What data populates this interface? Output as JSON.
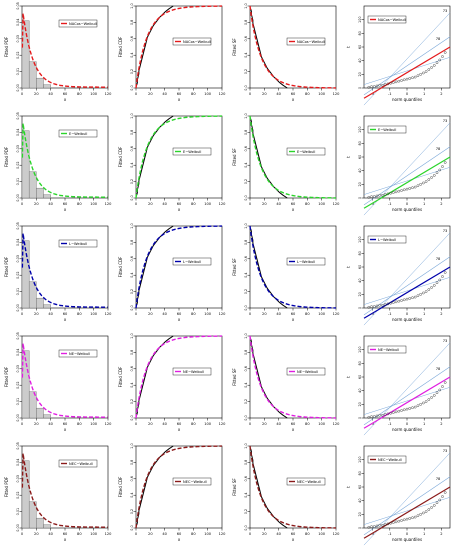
{
  "chart_data": [
    {
      "row": 0,
      "panel": "pdf",
      "type": "bar",
      "ylabel": "Fitted PDF",
      "xlabel": "x",
      "legend": "NACos−Weibull",
      "color": "#e41a1c",
      "xlim": [
        0,
        120
      ],
      "ylim": [
        0,
        0.05
      ],
      "xticks": [
        "0",
        "20",
        "40",
        "60",
        "80",
        "100",
        "120"
      ],
      "yticks": [
        "0.00",
        "0.01",
        "0.02",
        "0.03",
        "0.04",
        "0.05"
      ],
      "hist_bins": [
        0,
        10,
        20,
        30,
        40
      ],
      "hist_values": [
        0.041,
        0.016,
        0.006,
        0.002
      ]
    },
    {
      "row": 0,
      "panel": "cdf",
      "type": "line",
      "ylabel": "Fitted CDF",
      "xlabel": "x",
      "legend": "NACos−Weibull",
      "color": "#e41a1c",
      "xlim": [
        0,
        120
      ],
      "ylim": [
        0,
        1
      ],
      "xticks": [
        "0",
        "20",
        "40",
        "60",
        "80",
        "100",
        "120"
      ],
      "yticks": [
        "0.0",
        "0.2",
        "0.4",
        "0.6",
        "0.8",
        "1.0"
      ]
    },
    {
      "row": 0,
      "panel": "sf",
      "type": "line",
      "ylabel": "Fitted SF",
      "xlabel": "x",
      "legend": "NACos−Weibull",
      "color": "#e41a1c",
      "xlim": [
        0,
        120
      ],
      "ylim": [
        0,
        1
      ],
      "xticks": [
        "0",
        "20",
        "40",
        "60",
        "80",
        "100",
        "120"
      ],
      "yticks": [
        "0.0",
        "0.2",
        "0.4",
        "0.6",
        "0.8",
        "1.0"
      ]
    },
    {
      "row": 0,
      "panel": "qq",
      "type": "scatter",
      "ylabel": "t",
      "xlabel": "norm quantiles",
      "legend": "NACos−Weibull",
      "color": "#e41a1c",
      "xlim": [
        -2.5,
        2.5
      ],
      "ylim": [
        0,
        120
      ],
      "xticks": [
        "-2",
        "-1",
        "0",
        "1",
        "2"
      ],
      "yticks": [
        "0",
        "20",
        "40",
        "60",
        "80",
        "100"
      ],
      "annotations": [
        "73",
        "78"
      ]
    },
    {
      "row": 1,
      "panel": "pdf",
      "type": "bar",
      "ylabel": "Fitted PDF",
      "xlabel": "x",
      "legend": "E−Weibull",
      "color": "#2bd42b",
      "xlim": [
        0,
        120
      ],
      "ylim": [
        0,
        0.05
      ],
      "xticks": [
        "0",
        "20",
        "40",
        "60",
        "80",
        "100",
        "120"
      ],
      "yticks": [
        "0.00",
        "0.01",
        "0.02",
        "0.03",
        "0.04",
        "0.05"
      ],
      "hist_bins": [
        0,
        10,
        20,
        30,
        40
      ],
      "hist_values": [
        0.041,
        0.016,
        0.006,
        0.002
      ]
    },
    {
      "row": 1,
      "panel": "cdf",
      "type": "line",
      "ylabel": "Fitted CDF",
      "xlabel": "x",
      "legend": "E−Weibull",
      "color": "#2bd42b",
      "xlim": [
        0,
        120
      ],
      "ylim": [
        0,
        1
      ],
      "xticks": [
        "0",
        "20",
        "40",
        "60",
        "80",
        "100",
        "120"
      ],
      "yticks": [
        "0.0",
        "0.2",
        "0.4",
        "0.6",
        "0.8",
        "1.0"
      ]
    },
    {
      "row": 1,
      "panel": "sf",
      "type": "line",
      "ylabel": "Fitted SF",
      "xlabel": "x",
      "legend": "E−Weibull",
      "color": "#2bd42b",
      "xlim": [
        0,
        120
      ],
      "ylim": [
        0,
        1
      ],
      "xticks": [
        "0",
        "20",
        "40",
        "60",
        "80",
        "100",
        "120"
      ],
      "yticks": [
        "0.0",
        "0.2",
        "0.4",
        "0.6",
        "0.8",
        "1.0"
      ]
    },
    {
      "row": 1,
      "panel": "qq",
      "type": "scatter",
      "ylabel": "t",
      "xlabel": "norm quantiles",
      "legend": "E−Weibull",
      "color": "#2bd42b",
      "xlim": [
        -2.5,
        2.5
      ],
      "ylim": [
        0,
        120
      ],
      "xticks": [
        "-2",
        "-1",
        "0",
        "1",
        "2"
      ],
      "yticks": [
        "0",
        "20",
        "40",
        "60",
        "80",
        "100"
      ],
      "annotations": [
        "73",
        "78"
      ]
    },
    {
      "row": 2,
      "panel": "pdf",
      "type": "bar",
      "ylabel": "Fitted PDF",
      "xlabel": "x",
      "legend": "L−Weibull",
      "color": "#0000aa",
      "xlim": [
        0,
        120
      ],
      "ylim": [
        0,
        0.05
      ],
      "xticks": [
        "0",
        "20",
        "40",
        "60",
        "80",
        "100",
        "120"
      ],
      "yticks": [
        "0.00",
        "0.01",
        "0.02",
        "0.03",
        "0.04",
        "0.05"
      ],
      "hist_bins": [
        0,
        10,
        20,
        30,
        40
      ],
      "hist_values": [
        0.041,
        0.016,
        0.006,
        0.002
      ]
    },
    {
      "row": 2,
      "panel": "cdf",
      "type": "line",
      "ylabel": "Fitted CDF",
      "xlabel": "x",
      "legend": "L−Weibull",
      "color": "#0000aa",
      "xlim": [
        0,
        120
      ],
      "ylim": [
        0,
        1
      ],
      "xticks": [
        "0",
        "20",
        "40",
        "60",
        "80",
        "100",
        "120"
      ],
      "yticks": [
        "0.0",
        "0.2",
        "0.4",
        "0.6",
        "0.8",
        "1.0"
      ]
    },
    {
      "row": 2,
      "panel": "sf",
      "type": "line",
      "ylabel": "Fitted SF",
      "xlabel": "x",
      "legend": "L−Weibull",
      "color": "#0000aa",
      "xlim": [
        0,
        120
      ],
      "ylim": [
        0,
        1
      ],
      "xticks": [
        "0",
        "20",
        "40",
        "60",
        "80",
        "100",
        "120"
      ],
      "yticks": [
        "0.0",
        "0.2",
        "0.4",
        "0.6",
        "0.8",
        "1.0"
      ]
    },
    {
      "row": 2,
      "panel": "qq",
      "type": "scatter",
      "ylabel": "t",
      "xlabel": "norm quantiles",
      "legend": "L−Weibull",
      "color": "#0000aa",
      "xlim": [
        -2.5,
        2.5
      ],
      "ylim": [
        0,
        120
      ],
      "xticks": [
        "-2",
        "-1",
        "0",
        "1",
        "2"
      ],
      "yticks": [
        "0",
        "20",
        "40",
        "60",
        "80",
        "100"
      ],
      "annotations": [
        "73",
        "78"
      ]
    },
    {
      "row": 3,
      "panel": "pdf",
      "type": "bar",
      "ylabel": "Fitted PDF",
      "xlabel": "x",
      "legend": "NE−Weibull",
      "color": "#e01ee0",
      "xlim": [
        0,
        120
      ],
      "ylim": [
        0,
        0.05
      ],
      "xticks": [
        "0",
        "20",
        "40",
        "60",
        "80",
        "100",
        "120"
      ],
      "yticks": [
        "0.00",
        "0.01",
        "0.02",
        "0.03",
        "0.04",
        "0.05"
      ],
      "hist_bins": [
        0,
        10,
        20,
        30,
        40
      ],
      "hist_values": [
        0.041,
        0.016,
        0.006,
        0.002
      ]
    },
    {
      "row": 3,
      "panel": "cdf",
      "type": "line",
      "ylabel": "Fitted CDF",
      "xlabel": "x",
      "legend": "NE−Weibull",
      "color": "#e01ee0",
      "xlim": [
        0,
        120
      ],
      "ylim": [
        0,
        1
      ],
      "xticks": [
        "0",
        "20",
        "40",
        "60",
        "80",
        "100",
        "120"
      ],
      "yticks": [
        "0.0",
        "0.2",
        "0.4",
        "0.6",
        "0.8",
        "1.0"
      ]
    },
    {
      "row": 3,
      "panel": "sf",
      "type": "line",
      "ylabel": "Fitted SF",
      "xlabel": "x",
      "legend": "NE−Weibull",
      "color": "#e01ee0",
      "xlim": [
        0,
        120
      ],
      "ylim": [
        0,
        1
      ],
      "xticks": [
        "0",
        "20",
        "40",
        "60",
        "80",
        "100",
        "120"
      ],
      "yticks": [
        "0.0",
        "0.2",
        "0.4",
        "0.6",
        "0.8",
        "1.0"
      ]
    },
    {
      "row": 3,
      "panel": "qq",
      "type": "scatter",
      "ylabel": "t",
      "xlabel": "norm quantiles",
      "legend": "NE−Weibull",
      "color": "#e01ee0",
      "xlim": [
        -2.5,
        2.5
      ],
      "ylim": [
        0,
        120
      ],
      "xticks": [
        "-2",
        "-1",
        "0",
        "1",
        "2"
      ],
      "yticks": [
        "0",
        "20",
        "40",
        "60",
        "80",
        "100"
      ],
      "annotations": [
        "73",
        "78"
      ]
    },
    {
      "row": 4,
      "panel": "pdf",
      "type": "bar",
      "ylabel": "Fitted PDF",
      "xlabel": "x",
      "legend": "NEC−Weibull",
      "color": "#8b1a1a",
      "xlim": [
        0,
        120
      ],
      "ylim": [
        0,
        0.05
      ],
      "xticks": [
        "0",
        "20",
        "40",
        "60",
        "80",
        "100",
        "120"
      ],
      "yticks": [
        "0.00",
        "0.01",
        "0.02",
        "0.03",
        "0.04",
        "0.05"
      ],
      "hist_bins": [
        0,
        10,
        20,
        30,
        40
      ],
      "hist_values": [
        0.041,
        0.016,
        0.006,
        0.002
      ]
    },
    {
      "row": 4,
      "panel": "cdf",
      "type": "line",
      "ylabel": "Fitted CDF",
      "xlabel": "x",
      "legend": "NEC−Weibull",
      "color": "#8b1a1a",
      "xlim": [
        0,
        120
      ],
      "ylim": [
        0,
        1
      ],
      "xticks": [
        "0",
        "20",
        "40",
        "60",
        "80",
        "100",
        "120"
      ],
      "yticks": [
        "0.0",
        "0.2",
        "0.4",
        "0.6",
        "0.8",
        "1.0"
      ]
    },
    {
      "row": 4,
      "panel": "sf",
      "type": "line",
      "ylabel": "Fitted SF",
      "xlabel": "x",
      "legend": "NEC−Weibull",
      "color": "#8b1a1a",
      "xlim": [
        0,
        120
      ],
      "ylim": [
        0,
        1
      ],
      "xticks": [
        "0",
        "20",
        "40",
        "60",
        "80",
        "100",
        "120"
      ],
      "yticks": [
        "0.0",
        "0.2",
        "0.4",
        "0.6",
        "0.8",
        "1.0"
      ]
    },
    {
      "row": 4,
      "panel": "qq",
      "type": "scatter",
      "ylabel": "t",
      "xlabel": "norm quantiles",
      "legend": "NEC−Weibull",
      "color": "#8b1a1a",
      "xlim": [
        -2.5,
        2.5
      ],
      "ylim": [
        0,
        120
      ],
      "xticks": [
        "-2",
        "-1",
        "0",
        "1",
        "2"
      ],
      "yticks": [
        "0",
        "20",
        "40",
        "60",
        "80",
        "100"
      ],
      "annotations": [
        "73",
        "78"
      ]
    }
  ]
}
